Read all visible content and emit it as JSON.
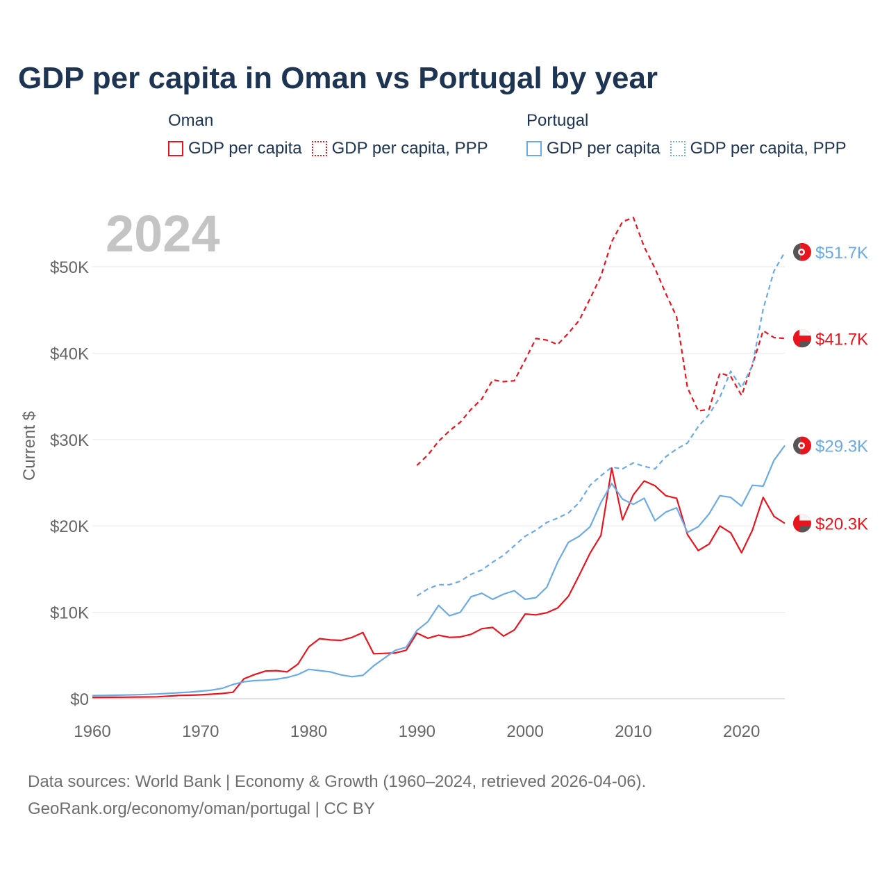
{
  "title": "GDP per capita in Oman vs Portugal by year",
  "legend": {
    "groups": [
      {
        "country": "Oman",
        "items": [
          {
            "label": "GDP per capita",
            "style": "solid",
            "color": "#e8151f"
          },
          {
            "label": "GDP per capita, PPP",
            "style": "dotted",
            "color": "#e8151f"
          }
        ]
      },
      {
        "country": "Portugal",
        "items": [
          {
            "label": "GDP per capita",
            "style": "solid",
            "color": "#6aaae6"
          },
          {
            "label": "GDP per capita, PPP",
            "style": "dotted",
            "color": "#6aaae6"
          }
        ]
      }
    ]
  },
  "footer": {
    "line1": "Data sources: World Bank | Economy & Growth (1960–2024, retrieved 2026-04-06).",
    "line2": "GeoRank.org/economy/oman/portugal | CC BY"
  },
  "chart_data": {
    "type": "line",
    "title": "GDP per capita in Oman vs Portugal by year",
    "year_label": "2024",
    "ylabel": "Current $",
    "xlabel": "",
    "xlim": [
      1960,
      2024
    ],
    "ylim": [
      0,
      55000
    ],
    "grid": true,
    "x_ticks": [
      1960,
      1970,
      1980,
      1990,
      2000,
      2010,
      2020
    ],
    "x_tick_labels": [
      "1960",
      "1970",
      "1980",
      "1990",
      "2000",
      "2010",
      "2020"
    ],
    "y_ticks": [
      0,
      10000,
      20000,
      30000,
      40000,
      50000
    ],
    "y_tick_labels": [
      "$0",
      "$10K",
      "$20K",
      "$30K",
      "$40K",
      "$50K"
    ],
    "series": [
      {
        "name": "Oman GDP per capita",
        "country": "Oman",
        "color": "#e8151f",
        "dash": "solid",
        "end_label": "$20.3K",
        "flag": "oman",
        "x": [
          1960,
          1961,
          1962,
          1963,
          1964,
          1965,
          1966,
          1967,
          1968,
          1969,
          1970,
          1971,
          1972,
          1973,
          1974,
          1975,
          1976,
          1977,
          1978,
          1979,
          1980,
          1981,
          1982,
          1983,
          1984,
          1985,
          1986,
          1987,
          1988,
          1989,
          1990,
          1991,
          1992,
          1993,
          1994,
          1995,
          1996,
          1997,
          1998,
          1999,
          2000,
          2001,
          2002,
          2003,
          2004,
          2005,
          2006,
          2007,
          2008,
          2009,
          2010,
          2011,
          2012,
          2013,
          2014,
          2015,
          2016,
          2017,
          2018,
          2019,
          2020,
          2021,
          2022,
          2023,
          2024
        ],
        "values": [
          150,
          160,
          170,
          180,
          190,
          200,
          220,
          300,
          380,
          400,
          450,
          520,
          600,
          750,
          2300,
          2800,
          3200,
          3250,
          3100,
          4000,
          6000,
          6950,
          6800,
          6750,
          7100,
          7650,
          5200,
          5250,
          5300,
          5600,
          7600,
          7000,
          7350,
          7100,
          7150,
          7450,
          8100,
          8250,
          7250,
          7950,
          9800,
          9700,
          9950,
          10500,
          11850,
          14300,
          16850,
          18900,
          26700,
          20700,
          23600,
          25200,
          24650,
          23500,
          23200,
          19000,
          17150,
          17900,
          20000,
          19200,
          16900,
          19500,
          23300,
          21100,
          20300
        ]
      },
      {
        "name": "Oman GDP per capita, PPP",
        "country": "Oman",
        "color": "#e8151f",
        "dash": "dashed",
        "end_label": "$41.7K",
        "flag": "oman",
        "x": [
          1990,
          1991,
          1992,
          1993,
          1994,
          1995,
          1996,
          1997,
          1998,
          1999,
          2000,
          2001,
          2002,
          2003,
          2004,
          2005,
          2006,
          2007,
          2008,
          2009,
          2010,
          2011,
          2012,
          2013,
          2014,
          2015,
          2016,
          2017,
          2018,
          2019,
          2020,
          2021,
          2022,
          2023,
          2024
        ],
        "values": [
          27000,
          28200,
          29800,
          31000,
          32000,
          33500,
          34700,
          36900,
          36700,
          36800,
          39200,
          41700,
          41500,
          41000,
          42300,
          43800,
          46300,
          48900,
          52900,
          55200,
          55700,
          52300,
          49800,
          46900,
          44200,
          36000,
          33300,
          33500,
          37700,
          37300,
          35100,
          38600,
          42600,
          41800,
          41700
        ]
      },
      {
        "name": "Portugal GDP per capita",
        "country": "Portugal",
        "color": "#6aaae6",
        "dash": "solid",
        "end_label": "$29.3K",
        "flag": "portugal",
        "x": [
          1960,
          1961,
          1962,
          1963,
          1964,
          1965,
          1966,
          1967,
          1968,
          1969,
          1970,
          1971,
          1972,
          1973,
          1974,
          1975,
          1976,
          1977,
          1978,
          1979,
          1980,
          1981,
          1982,
          1983,
          1984,
          1985,
          1986,
          1987,
          1988,
          1989,
          1990,
          1991,
          1992,
          1993,
          1994,
          1995,
          1996,
          1997,
          1998,
          1999,
          2000,
          2001,
          2002,
          2003,
          2004,
          2005,
          2006,
          2007,
          2008,
          2009,
          2010,
          2011,
          2012,
          2013,
          2014,
          2015,
          2016,
          2017,
          2018,
          2019,
          2020,
          2021,
          2022,
          2023,
          2024
        ],
        "values": [
          360,
          380,
          400,
          430,
          460,
          500,
          550,
          610,
          690,
          760,
          880,
          990,
          1200,
          1650,
          1950,
          2100,
          2150,
          2250,
          2450,
          2800,
          3400,
          3250,
          3100,
          2750,
          2550,
          2700,
          3800,
          4700,
          5600,
          5950,
          7900,
          8900,
          10800,
          9600,
          10000,
          11800,
          12200,
          11500,
          12100,
          12500,
          11500,
          11700,
          12900,
          15800,
          18100,
          18800,
          19900,
          22700,
          24900,
          23100,
          22500,
          23200,
          20600,
          21600,
          22100,
          19250,
          19900,
          21400,
          23500,
          23300,
          22300,
          24700,
          24600,
          27600,
          29300
        ]
      },
      {
        "name": "Portugal GDP per capita, PPP",
        "country": "Portugal",
        "color": "#6aaae6",
        "dash": "dashed",
        "end_label": "$51.7K",
        "flag": "portugal",
        "x": [
          1990,
          1991,
          1992,
          1993,
          1994,
          1995,
          1996,
          1997,
          1998,
          1999,
          2000,
          2001,
          2002,
          2003,
          2004,
          2005,
          2006,
          2007,
          2008,
          2009,
          2010,
          2011,
          2012,
          2013,
          2014,
          2015,
          2016,
          2017,
          2018,
          2019,
          2020,
          2021,
          2022,
          2023,
          2024
        ],
        "values": [
          11900,
          12700,
          13200,
          13200,
          13600,
          14400,
          14900,
          15800,
          16600,
          17700,
          18800,
          19500,
          20400,
          20900,
          21500,
          22700,
          24700,
          25800,
          26800,
          26600,
          27300,
          26900,
          26600,
          28000,
          28900,
          29600,
          31500,
          32900,
          34900,
          37900,
          36000,
          38600,
          45100,
          49500,
          51700
        ]
      }
    ]
  }
}
